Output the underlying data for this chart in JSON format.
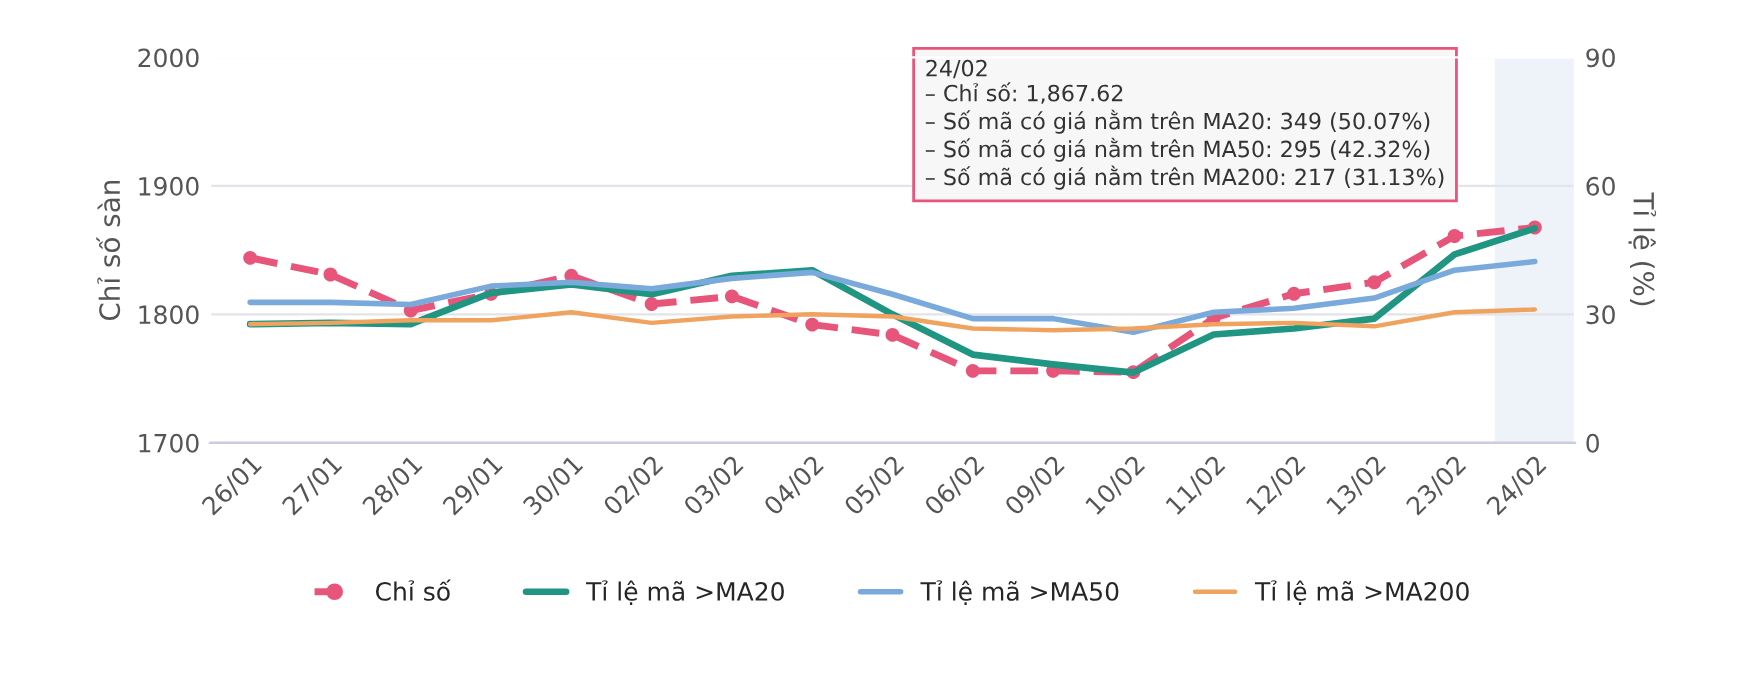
{
  "chart_data": {
    "type": "line",
    "ylabel": "Chỉ số sàn",
    "y2label": "Tỉ lệ (%)",
    "categories": [
      "26/01",
      "27/01",
      "28/01",
      "29/01",
      "30/01",
      "02/02",
      "03/02",
      "04/02",
      "05/02",
      "06/02",
      "09/02",
      "10/02",
      "11/02",
      "12/02",
      "13/02",
      "23/02",
      "24/02"
    ],
    "series": [
      {
        "name": "Chỉ số",
        "color": "#e8557a",
        "line_style": "dashed",
        "marker": "circle",
        "values": [
          1844,
          1831,
          1803,
          1816,
          1830,
          1808,
          1814,
          1792,
          1784,
          1756,
          1756,
          1755,
          1797,
          1816,
          1825,
          1861,
          1867.62
        ]
      },
      {
        "name": "Tỉ lệ mã >MA20",
        "color": "#1f9582",
        "axis": "y2",
        "line_style": "solid",
        "marker": "none",
        "values": [
          27.7,
          28,
          27.7,
          35,
          37,
          34.7,
          39,
          40.3,
          30,
          20.6,
          18.3,
          16.4,
          25.3,
          26.7,
          29,
          44,
          50.07
        ]
      },
      {
        "name": "Tỉ lệ mã >MA50",
        "color": "#7aaadc",
        "axis": "y2",
        "line_style": "solid",
        "marker": "none",
        "values": [
          32.8,
          32.8,
          32.3,
          36.6,
          37.5,
          36,
          38.4,
          39.8,
          34.7,
          29,
          29,
          25.8,
          30.5,
          31.4,
          33.8,
          40.3,
          42.32
        ]
      },
      {
        "name": "Tỉ lệ mã >MA200",
        "color": "#f0a35e",
        "axis": "y2",
        "line_style": "solid",
        "marker": "none",
        "values": [
          27.7,
          28,
          28.6,
          28.6,
          30.5,
          28,
          29.5,
          30,
          29.5,
          26.7,
          26.3,
          26.7,
          27.7,
          28,
          27.2,
          30.5,
          31.13
        ]
      }
    ],
    "ylim": [
      1700,
      2000
    ],
    "yticks": [
      1700,
      1800,
      1900,
      2000
    ],
    "y2lim": [
      0,
      90
    ],
    "y2ticks": [
      0,
      30,
      60,
      90
    ],
    "bands": [
      {
        "axis": "x",
        "from": "24/02",
        "to": "24/02",
        "color": "#eef3fa"
      }
    ],
    "annotations": [
      "24/02\n– Chỉ số: 1,867.62\n– Số mã có giá nằm trên MA20: 349 (50.07%)\n– Số mã có giá nằm trên MA50: 295 (42.32%)\n– Số mã có giá nằm trên MA200: 217 (31.13%)"
    ],
    "grid": "y",
    "legend": "bottom"
  }
}
